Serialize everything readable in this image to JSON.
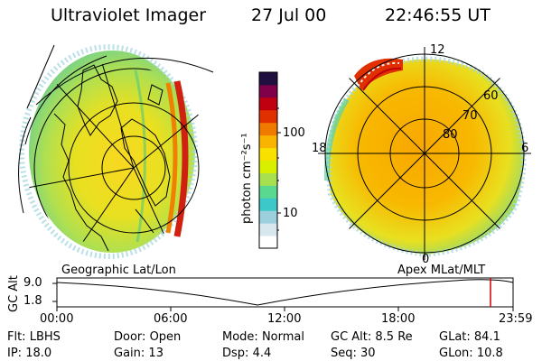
{
  "header": {
    "instrument": "Ultraviolet Imager",
    "date": "27 Jul 00",
    "time": "22:46:55 UT"
  },
  "colorbar": {
    "unit_label": "photon cm⁻²s⁻¹",
    "ticks": [
      "100",
      "10"
    ],
    "colors": [
      "#ffffff",
      "#d8e6ee",
      "#9ccfdc",
      "#3cc8c8",
      "#5ad890",
      "#a8e050",
      "#d8f000",
      "#f8e000",
      "#f8b400",
      "#f07a00",
      "#e03000",
      "#c00010",
      "#80004a",
      "#201040"
    ]
  },
  "left_map": {
    "label": "Geographic Lat/Lon"
  },
  "right_map": {
    "label": "Apex MLat/MLT",
    "mlt_labels": {
      "top": "12",
      "left": "18",
      "right": "6",
      "bottom": "0"
    },
    "mlat_labels": [
      "60",
      "70",
      "80"
    ]
  },
  "altitude_plot": {
    "ylabel": "GC Alt",
    "y_ticks": [
      "9.0",
      "1.8"
    ],
    "x_ticks": [
      "00:00",
      "06:00",
      "12:00",
      "18:00",
      "23:59"
    ],
    "marker_color": "#d00000"
  },
  "footer": {
    "row1": [
      {
        "label": "Flt:",
        "value": "LBHS"
      },
      {
        "label": "Door:",
        "value": "Open"
      },
      {
        "label": "Mode:",
        "value": "Normal"
      },
      {
        "label": "GC Alt:",
        "value": "8.5 Re"
      },
      {
        "label": "GLat:",
        "value": "84.1"
      }
    ],
    "row2": [
      {
        "label": "IP:",
        "value": "18.0"
      },
      {
        "label": "Gain:",
        "value": "13"
      },
      {
        "label": "Dsp:",
        "value": "4.4"
      },
      {
        "label": "Seq:",
        "value": "30"
      },
      {
        "label": "GLon:",
        "value": "10.8"
      }
    ]
  }
}
